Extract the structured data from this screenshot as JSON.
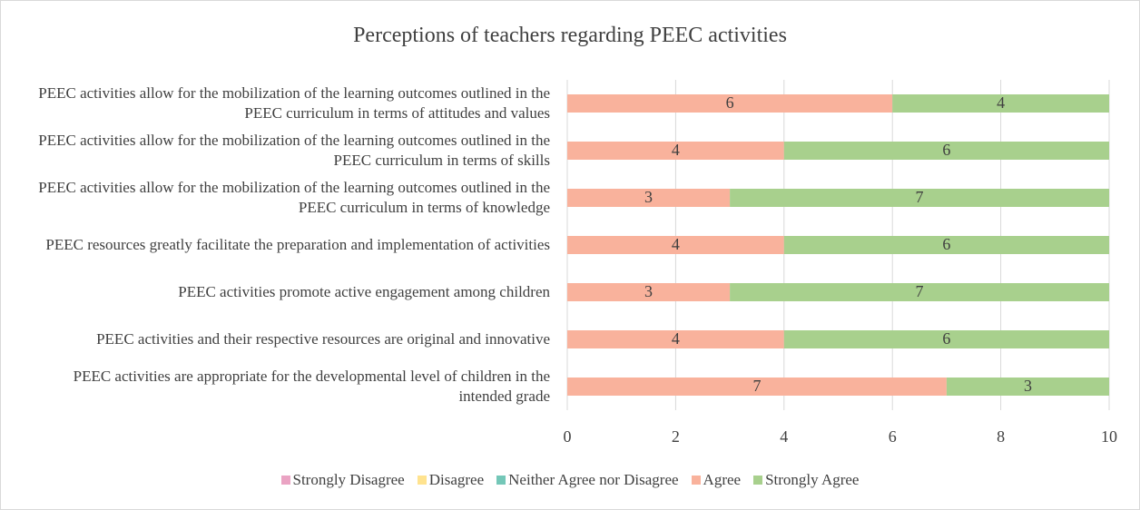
{
  "chart_data": {
    "type": "stacked-barh",
    "title": "Perceptions of teachers regarding PEEC activities",
    "categories": [
      "PEEC activities allow for the mobilization of the learning outcomes outlined in the PEEC curriculum in terms of attitudes and values",
      "PEEC activities allow for the mobilization of the learning outcomes outlined in the PEEC curriculum in terms of skills",
      "PEEC activities allow for the mobilization of the learning outcomes outlined in the PEEC curriculum in terms of knowledge",
      "PEEC resources greatly facilitate the preparation and implementation of activities",
      "PEEC activities promote active engagement among children",
      "PEEC activities and their respective resources are original and innovative",
      "PEEC activities are appropriate for the developmental level of children in the intended grade"
    ],
    "series": [
      {
        "name": "Strongly Disagree",
        "color": "#eaa3c3",
        "values": [
          0,
          0,
          0,
          0,
          0,
          0,
          0
        ]
      },
      {
        "name": "Disagree",
        "color": "#ffe38f",
        "values": [
          0,
          0,
          0,
          0,
          0,
          0,
          0
        ]
      },
      {
        "name": "Neither Agree nor Disagree",
        "color": "#74c7b8",
        "values": [
          0,
          0,
          0,
          0,
          0,
          0,
          0
        ]
      },
      {
        "name": "Agree",
        "color": "#f9b29c",
        "values": [
          6,
          4,
          3,
          4,
          3,
          4,
          7
        ]
      },
      {
        "name": "Strongly Agree",
        "color": "#a8d08d",
        "values": [
          4,
          6,
          7,
          6,
          7,
          6,
          3
        ]
      }
    ],
    "xlim": [
      0,
      10
    ],
    "xticks": [
      0,
      2,
      4,
      6,
      8,
      10
    ],
    "grid": true
  }
}
